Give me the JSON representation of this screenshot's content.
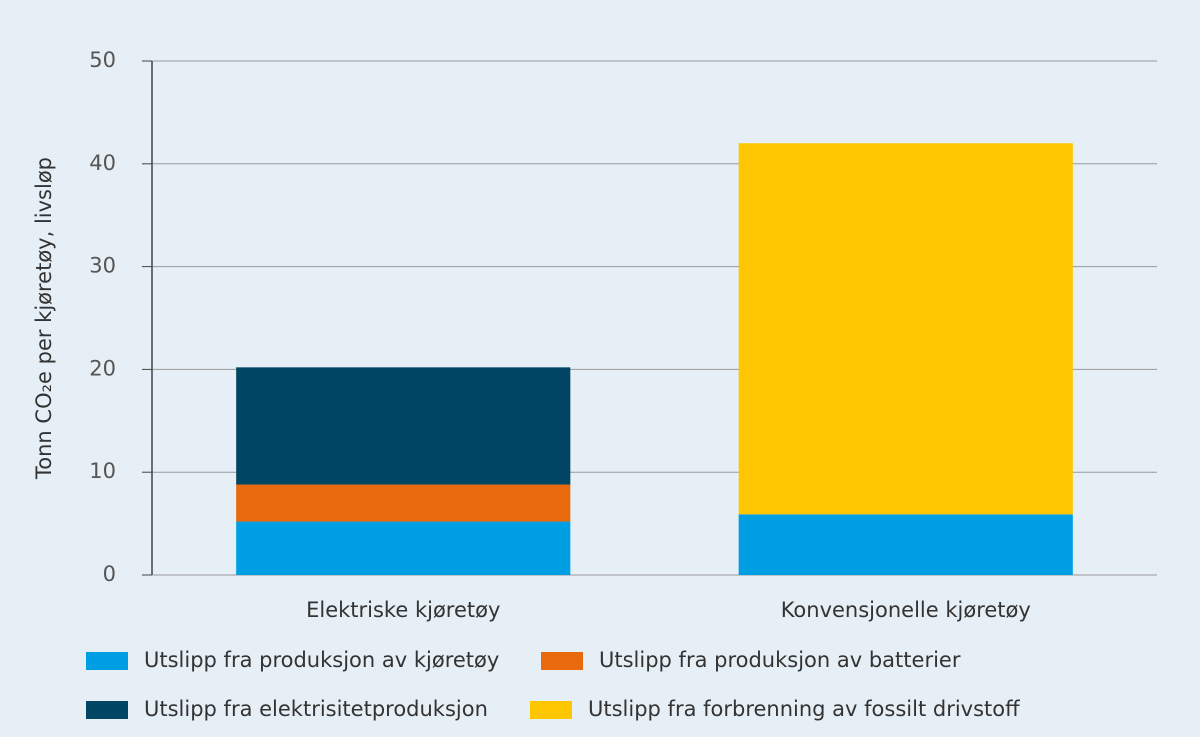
{
  "chart_data": {
    "type": "stacked_bar",
    "y_label": "Tonn CO₂e per kjøretøy, livsløp",
    "categories": [
      "Elektriske kjøretøy",
      "Konvensjonelle kjøretøy"
    ],
    "series": [
      {
        "name": "Utslipp fra produksjon av kjøretøy",
        "color": "#009fe3",
        "values": [
          5.2,
          5.9
        ]
      },
      {
        "name": "Utslipp fra produksjon av batterier",
        "color": "#e8690e",
        "values": [
          3.6,
          null
        ]
      },
      {
        "name": "Utslipp fra elektrisitetproduksjon",
        "color": "#004563",
        "values": [
          11.4,
          null
        ]
      },
      {
        "name": "Utslipp fra forbrenning av fossilt drivstoff",
        "color": "#fdc600",
        "values": [
          null,
          36.1
        ]
      }
    ],
    "ylim": [
      0,
      50
    ],
    "yticks": [
      0,
      10,
      20,
      30,
      40,
      50
    ],
    "grid": true,
    "legend": "bottom"
  }
}
